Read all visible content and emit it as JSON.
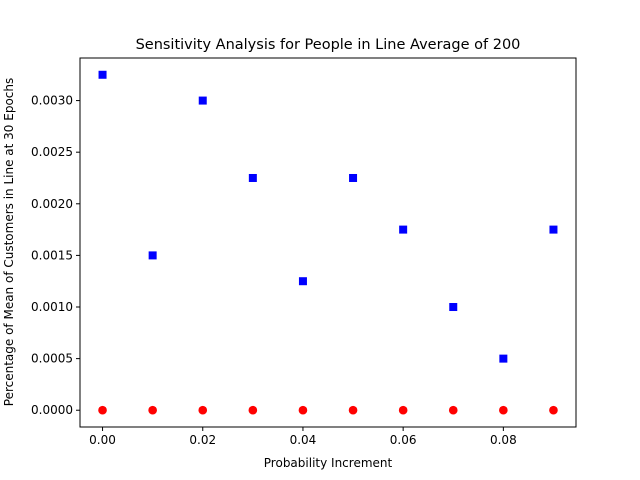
{
  "chart_data": {
    "type": "scatter",
    "title": "Sensitivity Analysis for People in Line Average of 200",
    "xlabel": "Probability Increment",
    "ylabel": "Percentage of Mean of Customers in Line at 30 Epochs",
    "xlim": [
      -0.0045,
      0.0945
    ],
    "ylim": [
      -0.0001625,
      0.0034125
    ],
    "x_ticks": [
      0.0,
      0.02,
      0.04,
      0.06,
      0.08
    ],
    "x_tick_labels": [
      "0.00",
      "0.02",
      "0.04",
      "0.06",
      "0.08"
    ],
    "y_ticks": [
      0.0,
      0.0005,
      0.001,
      0.0015,
      0.002,
      0.0025,
      0.003
    ],
    "y_tick_labels": [
      "0.0000",
      "0.0005",
      "0.0010",
      "0.0015",
      "0.0020",
      "0.0025",
      "0.0030"
    ],
    "grid": false,
    "series": [
      {
        "marker": "square",
        "color": "#0000ff",
        "x": [
          0.0,
          0.01,
          0.02,
          0.03,
          0.04,
          0.05,
          0.06,
          0.07,
          0.08,
          0.09
        ],
        "y": [
          0.00325,
          0.0015,
          0.003,
          0.00225,
          0.00125,
          0.00225,
          0.00175,
          0.001,
          0.0005,
          0.00175
        ]
      },
      {
        "marker": "circle",
        "color": "#ff0000",
        "x": [
          0.0,
          0.01,
          0.02,
          0.03,
          0.04,
          0.05,
          0.06,
          0.07,
          0.08,
          0.09
        ],
        "y": [
          0.0,
          0.0,
          0.0,
          0.0,
          0.0,
          0.0,
          0.0,
          0.0,
          0.0,
          0.0
        ]
      }
    ]
  }
}
